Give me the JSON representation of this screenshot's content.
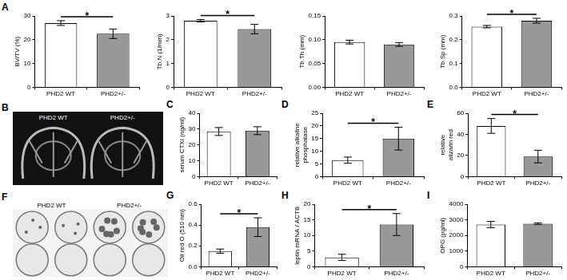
{
  "chart_data": [
    {
      "panel": "A",
      "type": "bar",
      "categories": [
        "PHD2 WT",
        "PHD2+/-"
      ],
      "values": [
        27,
        22.5
      ],
      "errors": [
        1,
        2
      ],
      "colors": [
        "#ffffff",
        "#999999"
      ],
      "ylabel": "BV/TV (%)",
      "ylim": [
        0,
        30
      ],
      "yticks": [
        0,
        10,
        20,
        30
      ],
      "grid": false,
      "annotation": "*"
    },
    {
      "type": "bar",
      "categories": [
        "PHD2 WT",
        "PHD2+/-"
      ],
      "values": [
        2.8,
        2.45
      ],
      "errors": [
        0.05,
        0.2
      ],
      "colors": [
        "#ffffff",
        "#999999"
      ],
      "ylabel": "Tb.N (1/mm)",
      "ylim": [
        0,
        3
      ],
      "yticks": [
        0,
        1,
        2,
        3
      ],
      "grid": false,
      "annotation": "*"
    },
    {
      "type": "bar",
      "categories": [
        "PHD2 WT",
        "PHD2+/-"
      ],
      "values": [
        0.095,
        0.09
      ],
      "errors": [
        0.004,
        0.004
      ],
      "colors": [
        "#ffffff",
        "#999999"
      ],
      "ylabel": "Tb.Th (mm)",
      "ylim": [
        0,
        0.15
      ],
      "yticks": [
        {
          "value": 0,
          "label": "0.00"
        },
        {
          "value": 0.05,
          "label": "0.05"
        },
        {
          "value": 0.1,
          "label": "0.10"
        },
        {
          "value": 0.15,
          "label": "0.15"
        }
      ],
      "grid": false
    },
    {
      "type": "bar",
      "categories": [
        "PHD2 WT",
        "PHD2+/-"
      ],
      "values": [
        0.255,
        0.28
      ],
      "errors": [
        0.005,
        0.01
      ],
      "colors": [
        "#ffffff",
        "#999999"
      ],
      "ylabel": "Tb.Sp (mm)",
      "ylim": [
        0,
        0.3
      ],
      "yticks": [
        {
          "value": 0,
          "label": "0.0"
        },
        0.1,
        0.2,
        0.3
      ],
      "grid": false,
      "annotation": "*"
    },
    {
      "panel": "C",
      "type": "bar",
      "categories": [
        "PHD2 WT",
        "PHD2+/-"
      ],
      "values": [
        28.5,
        29
      ],
      "errors": [
        2.5,
        2.5
      ],
      "colors": [
        "#ffffff",
        "#999999"
      ],
      "ylabel": "serum CTXI (ng/ml)",
      "ylim": [
        0,
        40
      ],
      "yticks": [
        0,
        10,
        20,
        30,
        40
      ],
      "grid": false
    },
    {
      "panel": "D",
      "type": "bar",
      "categories": [
        "PHD2 WT",
        "PHD2+/-"
      ],
      "values": [
        6.5,
        15
      ],
      "errors": [
        1.2,
        4.5
      ],
      "colors": [
        "#ffffff",
        "#999999"
      ],
      "ylabel": [
        "relative alkaline",
        "phosphatase"
      ],
      "ylim": [
        0,
        25
      ],
      "yticks": [
        0,
        5,
        10,
        15,
        20,
        25
      ],
      "grid": false,
      "annotation": "*"
    },
    {
      "panel": "E",
      "type": "bar",
      "categories": [
        "PHD2 WT",
        "PHD2+/-"
      ],
      "values": [
        48,
        19
      ],
      "errors": [
        7,
        6
      ],
      "colors": [
        "#ffffff",
        "#999999"
      ],
      "ylabel": [
        "relative",
        "alizarin red"
      ],
      "ylim": [
        0,
        60
      ],
      "yticks": [
        0,
        20,
        40,
        60
      ],
      "grid": false,
      "annotation": "*"
    },
    {
      "panel": "G",
      "type": "bar",
      "categories": [
        "PHD2 WT",
        "PHD2+/-"
      ],
      "values": [
        0.15,
        0.38
      ],
      "errors": [
        0.02,
        0.09
      ],
      "colors": [
        "#ffffff",
        "#999999"
      ],
      "ylabel": "Oil red O (510 nm)",
      "ylim": [
        0,
        0.6
      ],
      "yticks": [
        {
          "value": 0,
          "label": "0.0"
        },
        0.2,
        0.4,
        0.6
      ],
      "grid": false,
      "annotation": "*"
    },
    {
      "panel": "H",
      "type": "bar",
      "categories": [
        "PHD2 WT",
        "PHD2+/-"
      ],
      "values": [
        3,
        13.5
      ],
      "errors": [
        1,
        3.5
      ],
      "colors": [
        "#ffffff",
        "#999999"
      ],
      "ylabel": "leptin mRNA / ACTB",
      "ylim": [
        0,
        20
      ],
      "yticks": [
        0,
        5,
        10,
        15,
        20
      ],
      "grid": false,
      "annotation": "*"
    },
    {
      "panel": "I",
      "type": "bar",
      "categories": [
        "PHD2 WT",
        "PHD2+/-"
      ],
      "values": [
        2700,
        2750
      ],
      "errors": [
        200,
        50
      ],
      "colors": [
        "#ffffff",
        "#999999"
      ],
      "ylabel": "OPG (pg/ml)",
      "ylim": [
        0,
        4000
      ],
      "yticks": [
        0,
        1000,
        2000,
        3000,
        4000
      ],
      "grid": false
    }
  ],
  "images": [
    {
      "panel": "B",
      "labels": [
        "PHD2 WT",
        "PHD2+/-"
      ]
    },
    {
      "panel": "F",
      "labels": [
        "PHD2 WT",
        "PHD2+/-"
      ]
    }
  ]
}
